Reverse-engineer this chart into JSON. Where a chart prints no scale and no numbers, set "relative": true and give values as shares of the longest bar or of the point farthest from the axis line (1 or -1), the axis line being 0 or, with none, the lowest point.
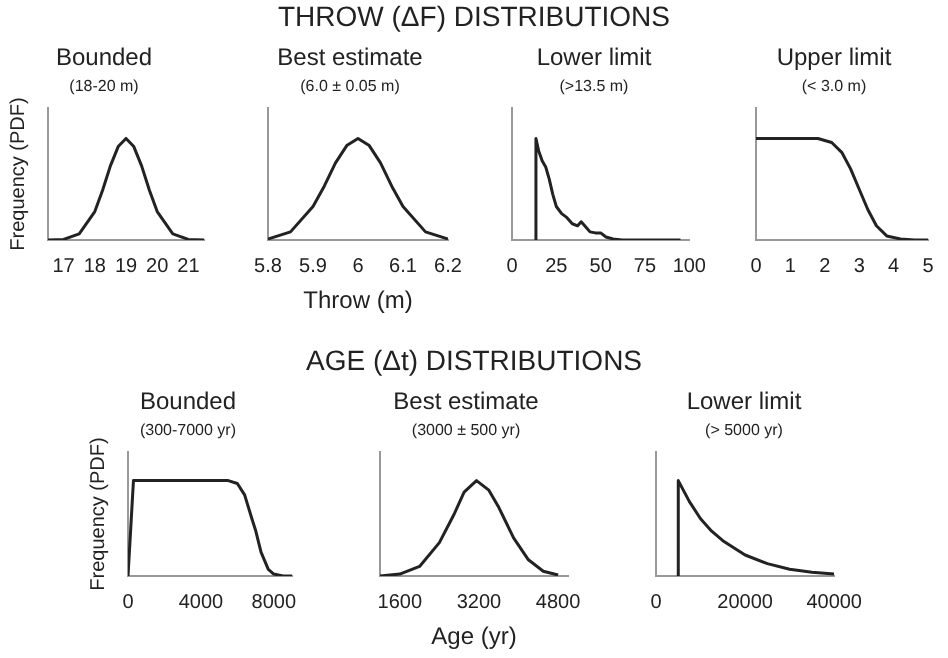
{
  "chart_data": [
    {
      "type": "line",
      "title": "Bounded",
      "subtitle": "(18-20 m)",
      "ylabel": "Frequency (PDF)",
      "annotations": [
        "THROW (ΔF) DISTRIBUTIONS"
      ],
      "relative": true,
      "xlim": [
        16.5,
        21.5
      ],
      "xticks": [
        17,
        18,
        19,
        20,
        21
      ],
      "grid": false,
      "legend": false,
      "marker": "none",
      "line_style": "solid",
      "series": [
        {
          "color": "#222222",
          "x": [
            16.5,
            17,
            17.5,
            18,
            18.25,
            18.5,
            18.75,
            19,
            19.25,
            19.5,
            19.75,
            20,
            20.5,
            21,
            21.5
          ],
          "values": [
            0,
            0.006,
            0.06,
            0.28,
            0.49,
            0.73,
            0.92,
            1,
            0.92,
            0.73,
            0.49,
            0.28,
            0.06,
            0.006,
            0
          ]
        }
      ]
    },
    {
      "type": "line",
      "title": "Best estimate",
      "subtitle": "(6.0 ± 0.05 m)",
      "xlabel": "Throw (m)",
      "relative": true,
      "xlim": [
        5.8,
        6.2
      ],
      "xticks": [
        5.8,
        5.9,
        6,
        6.1,
        6.2
      ],
      "grid": false,
      "legend": false,
      "marker": "none",
      "line_style": "solid",
      "series": [
        {
          "color": "#222222",
          "x": [
            5.8,
            5.85,
            5.9,
            5.925,
            5.95,
            5.975,
            6,
            6.025,
            6.05,
            6.075,
            6.1,
            6.15,
            6.2
          ],
          "values": [
            0.01,
            0.08,
            0.33,
            0.53,
            0.76,
            0.93,
            1,
            0.93,
            0.76,
            0.53,
            0.33,
            0.08,
            0.01
          ]
        }
      ]
    },
    {
      "type": "line",
      "title": "Lower limit",
      "subtitle": "(>13.5 m)",
      "relative": true,
      "xlim": [
        0,
        100
      ],
      "xticks": [
        0,
        25,
        50,
        75,
        100
      ],
      "grid": false,
      "legend": false,
      "marker": "none",
      "line_style": "solid",
      "series": [
        {
          "color": "#222222",
          "x": [
            13.5,
            13.5,
            15,
            17,
            19,
            21,
            23,
            25,
            28,
            31,
            34,
            37,
            39,
            41,
            44,
            47,
            50,
            53,
            57,
            62,
            80,
            95
          ],
          "values": [
            0,
            1,
            0.88,
            0.78,
            0.72,
            0.6,
            0.45,
            0.33,
            0.26,
            0.22,
            0.16,
            0.14,
            0.18,
            0.14,
            0.08,
            0.07,
            0.07,
            0.03,
            0.01,
            0,
            0,
            0
          ]
        }
      ]
    },
    {
      "type": "line",
      "title": "Upper limit",
      "subtitle": "(< 3.0 m)",
      "relative": true,
      "xlim": [
        0,
        5
      ],
      "xticks": [
        0,
        1,
        2,
        3,
        4,
        5
      ],
      "grid": false,
      "legend": false,
      "marker": "none",
      "line_style": "solid",
      "series": [
        {
          "color": "#222222",
          "x": [
            0,
            1,
            1.8,
            2.2,
            2.5,
            2.75,
            3,
            3.25,
            3.5,
            3.8,
            4.2,
            4.6,
            5
          ],
          "values": [
            1,
            1,
            1,
            0.96,
            0.86,
            0.7,
            0.5,
            0.3,
            0.14,
            0.04,
            0.01,
            0,
            0
          ]
        }
      ]
    },
    {
      "type": "line",
      "title": "Bounded",
      "subtitle": "(300-7000 yr)",
      "ylabel": "Frequency (PDF)",
      "annotations": [
        "AGE (Δt) DISTRIBUTIONS"
      ],
      "relative": true,
      "xlim": [
        0,
        9000
      ],
      "xticks": [
        0,
        4000,
        8000
      ],
      "grid": false,
      "legend": false,
      "marker": "none",
      "line_style": "solid",
      "series": [
        {
          "color": "#222222",
          "x": [
            0,
            150,
            300,
            500,
            3000,
            5500,
            6000,
            6400,
            6800,
            7000,
            7300,
            7700,
            8000,
            8500,
            9000
          ],
          "values": [
            0,
            0.5,
            1,
            1,
            1,
            1,
            0.97,
            0.85,
            0.6,
            0.48,
            0.25,
            0.07,
            0.02,
            0,
            0
          ]
        }
      ]
    },
    {
      "type": "line",
      "title": "Best estimate",
      "subtitle": "(3000 ± 500 yr)",
      "xlabel": "Age (yr)",
      "relative": true,
      "xlim": [
        1200,
        5000
      ],
      "xticks": [
        1600,
        3200,
        4800
      ],
      "grid": false,
      "legend": false,
      "marker": "none",
      "line_style": "solid",
      "series": [
        {
          "color": "#222222",
          "x": [
            1200,
            1600,
            2000,
            2400,
            2700,
            2900,
            3150,
            3400,
            3600,
            3900,
            4200,
            4500,
            4800
          ],
          "values": [
            0,
            0.02,
            0.1,
            0.35,
            0.65,
            0.88,
            1,
            0.9,
            0.72,
            0.4,
            0.17,
            0.05,
            0.01
          ]
        }
      ]
    },
    {
      "type": "line",
      "title": "Lower limit",
      "subtitle": "(> 5000 yr)",
      "relative": true,
      "xlim": [
        0,
        40000
      ],
      "xticks": [
        0,
        20000,
        40000
      ],
      "grid": false,
      "legend": false,
      "marker": "none",
      "line_style": "solid",
      "series": [
        {
          "color": "#222222",
          "x": [
            5000,
            5000,
            7500,
            10000,
            12500,
            15000,
            20000,
            25000,
            30000,
            35000,
            40000
          ],
          "values": [
            0,
            1,
            0.78,
            0.6,
            0.47,
            0.37,
            0.22,
            0.13,
            0.07,
            0.04,
            0.02
          ]
        }
      ]
    }
  ]
}
